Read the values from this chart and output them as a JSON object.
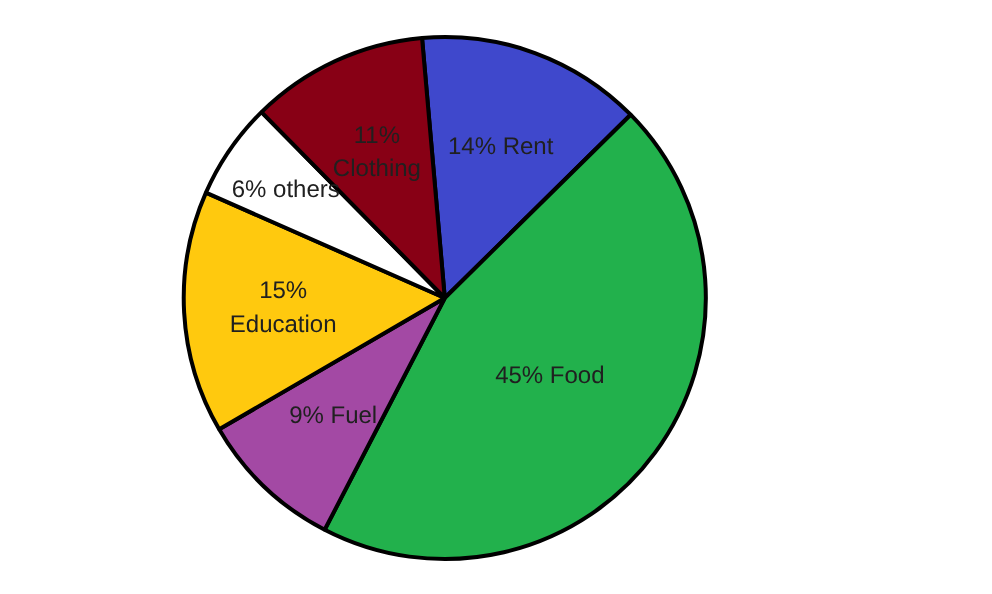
{
  "chart_data": {
    "type": "pie",
    "categories": [
      "Rent",
      "Food",
      "Fuel",
      "Education",
      "others",
      "Clothing"
    ],
    "values": [
      14,
      45,
      9,
      15,
      6,
      11
    ],
    "value_labels": [
      "14%",
      "45%",
      "9%",
      "15%",
      "6%",
      "11%"
    ],
    "colors": [
      "#3f48cc",
      "#22b14c",
      "#a349a4",
      "#ffc90e",
      "#ffffff",
      "#880015"
    ]
  }
}
